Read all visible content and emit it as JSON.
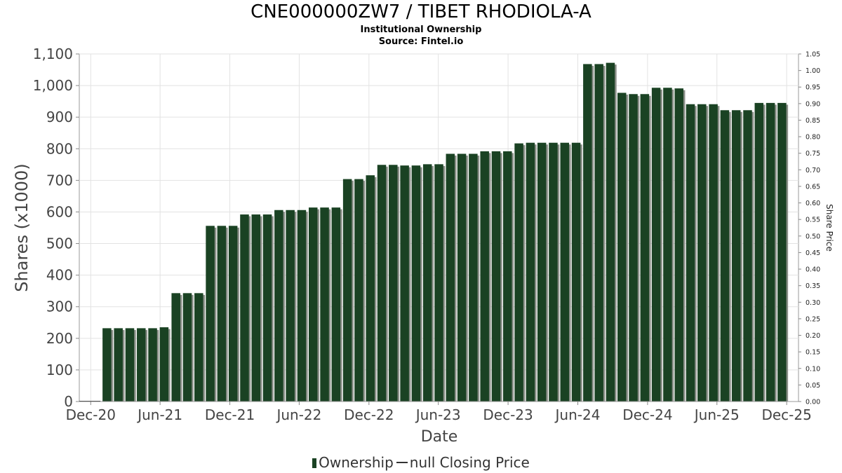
{
  "chart_data": {
    "type": "bar",
    "title": "CNE000000ZW7 / TIBET RHODIOLA-A",
    "subtitle": "Institutional Ownership",
    "source": "Source: Fintel.io",
    "xlabel": "Date",
    "ylabel": "Shares (x1000)",
    "y2label": "Share Price",
    "ylim": [
      0,
      1100
    ],
    "y2lim": [
      0,
      1.05
    ],
    "yticks": [
      "0",
      "100",
      "200",
      "300",
      "400",
      "500",
      "600",
      "700",
      "800",
      "900",
      "1,000",
      "1,100"
    ],
    "y2ticks": [
      "0.00",
      "0.05",
      "0.10",
      "0.15",
      "0.20",
      "0.25",
      "0.30",
      "0.35",
      "0.40",
      "0.45",
      "0.50",
      "0.55",
      "0.60",
      "0.65",
      "0.70",
      "0.75",
      "0.80",
      "0.85",
      "0.90",
      "0.95",
      "1.00",
      "1.05"
    ],
    "xticks": [
      "Dec-20",
      "Jun-21",
      "Dec-21",
      "Jun-22",
      "Dec-22",
      "Jun-23",
      "Dec-23",
      "Jun-24",
      "Dec-24",
      "Jun-25",
      "Dec-25"
    ],
    "xrange": [
      "2020-11-01",
      "2026-01-01"
    ],
    "grid": true,
    "legend": {
      "placement": "bottom",
      "items": [
        {
          "label": "Ownership",
          "type": "bar",
          "color": "#1a4223"
        },
        {
          "label": "null Closing Price",
          "type": "line",
          "color": "#333333"
        }
      ]
    },
    "series": [
      {
        "name": "Ownership",
        "color": "#1a4223",
        "points": [
          [
            "2021-01-01",
            232
          ],
          [
            "2021-01-31",
            232
          ],
          [
            "2021-03-02",
            232
          ],
          [
            "2021-04-01",
            232
          ],
          [
            "2021-05-01",
            232
          ],
          [
            "2021-05-31",
            235
          ],
          [
            "2021-07-01",
            343
          ],
          [
            "2021-07-31",
            343
          ],
          [
            "2021-08-30",
            343
          ],
          [
            "2021-09-29",
            556
          ],
          [
            "2021-10-29",
            556
          ],
          [
            "2021-11-28",
            556
          ],
          [
            "2021-12-28",
            592
          ],
          [
            "2022-01-27",
            592
          ],
          [
            "2022-02-26",
            592
          ],
          [
            "2022-03-28",
            606
          ],
          [
            "2022-04-27",
            606
          ],
          [
            "2022-05-27",
            606
          ],
          [
            "2022-06-26",
            614
          ],
          [
            "2022-07-26",
            614
          ],
          [
            "2022-08-25",
            614
          ],
          [
            "2022-09-24",
            704
          ],
          [
            "2022-10-24",
            704
          ],
          [
            "2022-11-23",
            716
          ],
          [
            "2022-12-23",
            749
          ],
          [
            "2023-01-22",
            749
          ],
          [
            "2023-02-21",
            747
          ],
          [
            "2023-03-23",
            747
          ],
          [
            "2023-04-22",
            751
          ],
          [
            "2023-05-22",
            751
          ],
          [
            "2023-06-21",
            784
          ],
          [
            "2023-07-21",
            784
          ],
          [
            "2023-08-20",
            784
          ],
          [
            "2023-09-19",
            792
          ],
          [
            "2023-10-19",
            792
          ],
          [
            "2023-11-18",
            792
          ],
          [
            "2023-12-18",
            817
          ],
          [
            "2024-01-17",
            819
          ],
          [
            "2024-02-16",
            819
          ],
          [
            "2024-03-17",
            819
          ],
          [
            "2024-04-16",
            819
          ],
          [
            "2024-05-16",
            819
          ],
          [
            "2024-06-15",
            1068
          ],
          [
            "2024-07-15",
            1068
          ],
          [
            "2024-08-14",
            1072
          ],
          [
            "2024-09-13",
            977
          ],
          [
            "2024-10-13",
            973
          ],
          [
            "2024-11-12",
            973
          ],
          [
            "2024-12-12",
            993
          ],
          [
            "2025-01-11",
            993
          ],
          [
            "2025-02-10",
            991
          ],
          [
            "2025-03-12",
            941
          ],
          [
            "2025-04-11",
            941
          ],
          [
            "2025-05-11",
            941
          ],
          [
            "2025-06-10",
            922
          ],
          [
            "2025-07-10",
            922
          ],
          [
            "2025-08-09",
            922
          ],
          [
            "2025-09-08",
            945
          ],
          [
            "2025-10-08",
            945
          ],
          [
            "2025-11-07",
            945
          ]
        ]
      }
    ]
  }
}
